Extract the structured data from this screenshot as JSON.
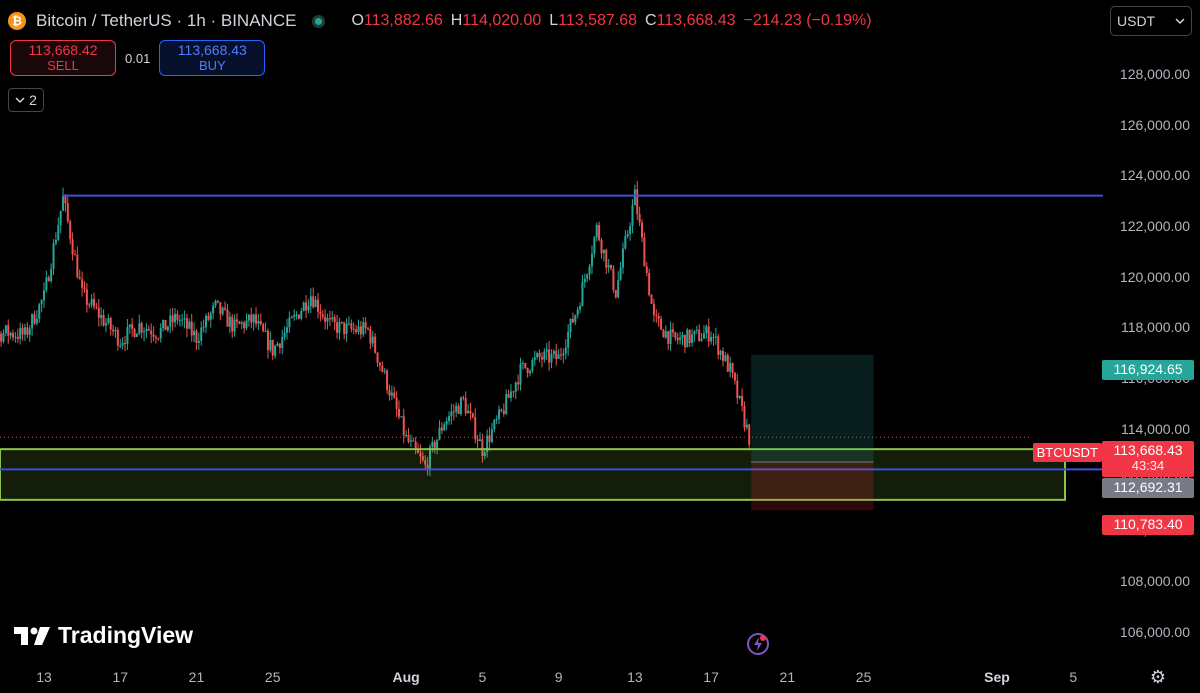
{
  "header": {
    "title": "Bitcoin / TetherUS · 1h · BINANCE",
    "ohlc": {
      "o_label": "O",
      "o": "113,882.66",
      "h_label": "H",
      "h": "114,020.00",
      "l_label": "L",
      "l": "113,587.68",
      "c_label": "C",
      "c": "113,668.43",
      "change": "−214.23 (−0.19%)"
    }
  },
  "trade": {
    "sell_price": "113,668.42",
    "sell_label": "SELL",
    "spread": "0.01",
    "buy_price": "113,668.43",
    "buy_label": "BUY"
  },
  "collapse_label": "2",
  "currency": "USDT",
  "logo_text": "TradingView",
  "price_tags": {
    "tp": "116,924.65",
    "symbol": "BTCUSDT",
    "last": "113,668.43",
    "countdown": "43:34",
    "entry": "112,692.31",
    "sl": "110,783.40"
  },
  "colors": {
    "up": "#26a69a",
    "down": "#ef5350",
    "resistance": "#3f51d8",
    "zone": "#8bc34a",
    "background": "#000000"
  },
  "chart_data": {
    "type": "candlestick",
    "symbol": "BTCUSDT",
    "timeframe": "1h",
    "ylim": [
      105000,
      129500
    ],
    "y_ticks": [
      106000,
      108000,
      110000,
      112000,
      114000,
      116000,
      118000,
      120000,
      122000,
      124000,
      126000,
      128000
    ],
    "y_tick_labels": [
      "106,000.00",
      "108,000.00",
      "110,000.00",
      "112,000.00",
      "114,000.00",
      "116,000.00",
      "118,000.00",
      "120,000.00",
      "122,000.00",
      "124,000.00",
      "126,000.00",
      "128,000.00"
    ],
    "x_tick_labels": [
      "13",
      "17",
      "21",
      "25",
      "Aug",
      "5",
      "9",
      "13",
      "17",
      "21",
      "25",
      "Sep",
      "5"
    ],
    "x_tick_dates": [
      "2025-07-13",
      "2025-07-17",
      "2025-07-21",
      "2025-07-25",
      "2025-08-01",
      "2025-08-05",
      "2025-08-09",
      "2025-08-13",
      "2025-08-17",
      "2025-08-21",
      "2025-08-25",
      "2025-09-01",
      "2025-09-05"
    ],
    "price_series": [
      [
        "2025-07-09",
        115000
      ],
      [
        "2025-07-10",
        117600
      ],
      [
        "2025-07-11",
        117800
      ],
      [
        "2025-07-12",
        117700
      ],
      [
        "2025-07-13",
        119200
      ],
      [
        "2025-07-14",
        123100
      ],
      [
        "2025-07-15",
        119300
      ],
      [
        "2025-07-16",
        118400
      ],
      [
        "2025-07-17",
        117500
      ],
      [
        "2025-07-18",
        118100
      ],
      [
        "2025-07-19",
        117800
      ],
      [
        "2025-07-20",
        118400
      ],
      [
        "2025-07-21",
        117600
      ],
      [
        "2025-07-22",
        118800
      ],
      [
        "2025-07-23",
        118000
      ],
      [
        "2025-07-24",
        118300
      ],
      [
        "2025-07-25",
        117100
      ],
      [
        "2025-07-26",
        118200
      ],
      [
        "2025-07-27",
        119300
      ],
      [
        "2025-07-28",
        118100
      ],
      [
        "2025-07-29",
        117900
      ],
      [
        "2025-07-30",
        117900
      ],
      [
        "2025-07-31",
        115800
      ],
      [
        "2025-08-01",
        113600
      ],
      [
        "2025-08-02",
        112500
      ],
      [
        "2025-08-03",
        114300
      ],
      [
        "2025-08-04",
        115100
      ],
      [
        "2025-08-05",
        113200
      ],
      [
        "2025-08-06",
        114600
      ],
      [
        "2025-08-07",
        116300
      ],
      [
        "2025-08-08",
        116800
      ],
      [
        "2025-08-09",
        116800
      ],
      [
        "2025-08-10",
        118800
      ],
      [
        "2025-08-11",
        121900
      ],
      [
        "2025-08-12",
        119400
      ],
      [
        "2025-08-13",
        123200
      ],
      [
        "2025-08-14",
        118300
      ],
      [
        "2025-08-15",
        117500
      ],
      [
        "2025-08-16",
        117600
      ],
      [
        "2025-08-17",
        117800
      ],
      [
        "2025-08-18",
        116300
      ],
      [
        "2025-08-19",
        113668
      ]
    ],
    "annotations": {
      "resistance_line": 123200,
      "support_line": 112400,
      "demand_zone": [
        111200,
        113200
      ],
      "long_position": {
        "take_profit": 116924.65,
        "entry": 112692.31,
        "stop_loss": 110783.4
      },
      "last_price_line": 113668.43
    }
  }
}
